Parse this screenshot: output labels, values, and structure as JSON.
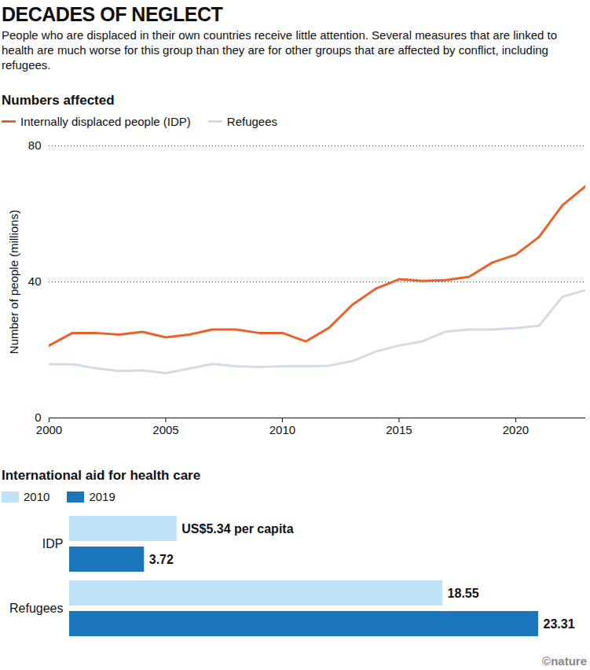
{
  "header": {
    "title": "DECADES OF NEGLECT",
    "subtitle": "People who are displaced in their own countries receive little attention. Several measures that are linked to health are much worse for this group than they are for other groups that are affected by conflict, including refugees."
  },
  "chart_data": [
    {
      "type": "line",
      "title": "Numbers affected",
      "y_label": "Number of people (millions)",
      "x": [
        2000,
        2001,
        2002,
        2003,
        2004,
        2005,
        2006,
        2007,
        2008,
        2009,
        2010,
        2011,
        2012,
        2013,
        2014,
        2015,
        2016,
        2017,
        2018,
        2019,
        2020,
        2021,
        2022,
        2023
      ],
      "series": [
        {
          "name": "Internally displaced people (IDP)",
          "color": "#e8632b",
          "values": [
            21.3,
            25,
            25,
            24.5,
            25.3,
            23.7,
            24.5,
            26,
            26,
            25,
            25,
            22.5,
            26.5,
            33.3,
            38,
            40.8,
            40.3,
            40.5,
            41.5,
            45.7,
            48,
            53.2,
            62.5,
            68.2
          ]
        },
        {
          "name": "Refugees",
          "color": "#d3dce6",
          "values": [
            15.8,
            15.8,
            14.6,
            13.8,
            14,
            13.2,
            14.5,
            15.9,
            15.2,
            15,
            15.2,
            15.2,
            15.4,
            16.7,
            19.5,
            21.3,
            22.5,
            25.4,
            26,
            26,
            26.4,
            27.1,
            35.6,
            37.6
          ]
        }
      ],
      "xlim": [
        2000,
        2023
      ],
      "xticks": [
        2000,
        2005,
        2010,
        2015,
        2020
      ],
      "ylim": [
        0,
        80
      ],
      "yticks": [
        0,
        40,
        80
      ],
      "grid": true,
      "legend": "top-left"
    },
    {
      "type": "bar",
      "title": "International aid for health care",
      "orientation": "horizontal",
      "categories": [
        "IDP",
        "Refugees"
      ],
      "series": [
        {
          "name": "2010",
          "color": "#bfe3f6",
          "values": [
            5.34,
            18.55
          ],
          "value_labels": [
            "US$5.34 per capita",
            "18.55"
          ]
        },
        {
          "name": "2019",
          "color": "#1b75bb",
          "values": [
            3.72,
            23.31
          ],
          "value_labels": [
            "3.72",
            "23.31"
          ]
        }
      ],
      "data_labels": true,
      "tick_labels": "y",
      "legend": "top-left"
    }
  ],
  "credit": "©nature"
}
